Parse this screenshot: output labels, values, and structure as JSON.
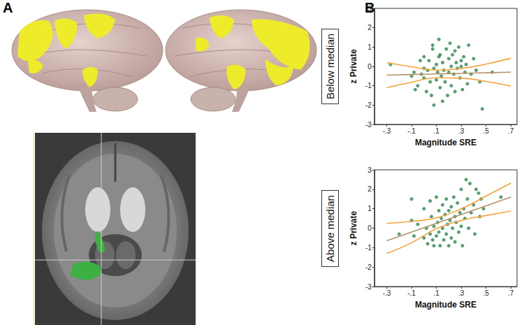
{
  "panel_labels": [
    "A",
    "B"
  ],
  "chart_data": [
    {
      "type": "scatter",
      "title": "Below median",
      "xlabel": "Magnitude SRE",
      "ylabel": "z Private",
      "xlim": [
        -0.4,
        0.75
      ],
      "xticks": [
        {
          "value": -0.3,
          "label": "-.3"
        },
        {
          "value": -0.1,
          "label": "-.1"
        },
        {
          "value": 0.1,
          "label": ".1"
        },
        {
          "value": 0.3,
          "label": ".3"
        },
        {
          "value": 0.5,
          "label": ".5"
        },
        {
          "value": 0.7,
          "label": ".7"
        }
      ],
      "ylim": [
        -3,
        3
      ],
      "yticks": [
        -3,
        -2,
        -1,
        0,
        1,
        2,
        3
      ],
      "grid": false,
      "series": [
        {
          "type": "scatter",
          "color": "#2a8a4a",
          "marker": "circle",
          "x": [
            -0.27,
            -0.1,
            -0.08,
            -0.07,
            -0.05,
            -0.02,
            0.0,
            0.0,
            0.02,
            0.03,
            0.04,
            0.05,
            0.06,
            0.07,
            0.08,
            0.08,
            0.1,
            0.1,
            0.11,
            0.12,
            0.13,
            0.13,
            0.14,
            0.15,
            0.16,
            0.17,
            0.18,
            0.19,
            0.2,
            0.2,
            0.21,
            0.22,
            0.22,
            0.23,
            0.24,
            0.25,
            0.25,
            0.26,
            0.27,
            0.28,
            0.29,
            0.3,
            0.31,
            0.32,
            0.33,
            0.34,
            0.35,
            0.36,
            0.38,
            0.4,
            0.42,
            0.45,
            0.47,
            0.55,
            0.07,
            0.15,
            0.0,
            -0.03,
            0.12,
            0.3
          ],
          "values": [
            0.1,
            -0.5,
            -0.3,
            -1.2,
            -1.0,
            -0.4,
            0.5,
            -0.6,
            -1.3,
            -0.2,
            0.3,
            -0.8,
            -1.5,
            1.1,
            -0.1,
            -2.0,
            0.1,
            -0.7,
            -0.3,
            1.4,
            0.6,
            -1.1,
            -0.5,
            0.2,
            -0.2,
            -0.8,
            0.9,
            -1.5,
            0.4,
            -0.3,
            1.2,
            0.0,
            -1.0,
            0.6,
            -0.4,
            0.8,
            -1.3,
            0.2,
            -0.1,
            1.0,
            -0.6,
            0.3,
            -1.2,
            0.5,
            -0.3,
            0.1,
            -0.9,
            1.1,
            -0.4,
            0.4,
            -0.2,
            -0.8,
            -2.2,
            -0.3,
            0.9,
            -1.8,
            -0.1,
            0.3,
            0.5,
            0.0
          ]
        },
        {
          "type": "line",
          "color": "#b8926a",
          "line_style": "solid",
          "x": [
            -0.3,
            -0.1,
            0.1,
            0.3,
            0.5,
            0.7
          ],
          "values": [
            -0.45,
            -0.42,
            -0.39,
            -0.36,
            -0.33,
            -0.3
          ]
        },
        {
          "type": "line",
          "color": "#f5a33c",
          "line_style": "solid",
          "x": [
            -0.3,
            -0.1,
            0.1,
            0.3,
            0.5,
            0.7
          ],
          "values": [
            0.2,
            -0.02,
            -0.19,
            -0.11,
            0.12,
            0.42
          ]
        },
        {
          "type": "line",
          "color": "#f5a33c",
          "line_style": "solid",
          "x": [
            -0.3,
            -0.1,
            0.1,
            0.3,
            0.5,
            0.7
          ],
          "values": [
            -1.1,
            -0.82,
            -0.59,
            -0.61,
            -0.78,
            -1.02
          ]
        }
      ]
    },
    {
      "type": "scatter",
      "title": "Above median",
      "xlabel": "Magnitude SRE",
      "ylabel": "z Private",
      "xlim": [
        -0.4,
        0.75
      ],
      "xticks": [
        {
          "value": -0.3,
          "label": "-.3"
        },
        {
          "value": -0.1,
          "label": "-.1"
        },
        {
          "value": 0.1,
          "label": ".1"
        },
        {
          "value": 0.3,
          "label": ".3"
        },
        {
          "value": 0.5,
          "label": ".5"
        },
        {
          "value": 0.7,
          "label": ".7"
        }
      ],
      "ylim": [
        -3,
        3
      ],
      "yticks": [
        -3,
        -2,
        -1,
        0,
        1,
        2,
        3
      ],
      "grid": false,
      "series": [
        {
          "type": "scatter",
          "color": "#2a8a4a",
          "marker": "circle",
          "x": [
            -0.1,
            -0.1,
            -0.08,
            -0.05,
            0.0,
            0.0,
            0.02,
            0.03,
            0.05,
            0.05,
            0.06,
            0.08,
            0.08,
            0.1,
            0.1,
            0.11,
            0.12,
            0.12,
            0.13,
            0.14,
            0.15,
            0.15,
            0.16,
            0.17,
            0.18,
            0.18,
            0.19,
            0.2,
            0.2,
            0.21,
            0.22,
            0.22,
            0.23,
            0.24,
            0.25,
            0.25,
            0.26,
            0.27,
            0.28,
            0.29,
            0.3,
            0.3,
            0.31,
            0.32,
            0.33,
            0.34,
            0.35,
            0.36,
            0.37,
            0.38,
            0.4,
            0.41,
            0.42,
            0.44,
            0.45,
            0.46,
            0.48,
            0.62,
            -0.2,
            0.07
          ],
          "values": [
            0.4,
            1.5,
            -0.4,
            0.2,
            -0.5,
            1.0,
            0.0,
            -0.8,
            1.4,
            -0.3,
            0.6,
            0.1,
            -0.9,
            1.6,
            -0.4,
            0.3,
            0.9,
            -0.2,
            -0.9,
            0.5,
            1.2,
            0.0,
            -0.6,
            0.7,
            1.5,
            -0.3,
            0.2,
            -0.9,
            0.9,
            0.4,
            1.1,
            -0.5,
            0.0,
            1.6,
            0.6,
            -0.7,
            0.3,
            1.3,
            -0.2,
            0.8,
            2.0,
            0.1,
            -0.9,
            1.0,
            0.5,
            2.5,
            1.5,
            0.0,
            2.3,
            0.8,
            1.2,
            -0.3,
            2.0,
            1.8,
            0.6,
            1.5,
            1.0,
            1.6,
            -0.3,
            -0.6
          ]
        },
        {
          "type": "line",
          "color": "#b8926a",
          "line_style": "solid",
          "x": [
            -0.3,
            -0.1,
            0.1,
            0.3,
            0.5,
            0.7
          ],
          "values": [
            -0.65,
            -0.2,
            0.25,
            0.7,
            1.15,
            1.6
          ]
        },
        {
          "type": "line",
          "color": "#f5a33c",
          "line_style": "solid",
          "x": [
            -0.3,
            -0.1,
            0.1,
            0.3,
            0.5,
            0.7
          ],
          "values": [
            0.25,
            0.35,
            0.53,
            1.0,
            1.65,
            2.32
          ]
        },
        {
          "type": "line",
          "color": "#f5a33c",
          "line_style": "solid",
          "x": [
            -0.3,
            -0.1,
            0.1,
            0.3,
            0.5,
            0.7
          ],
          "values": [
            -1.3,
            -0.75,
            -0.03,
            0.4,
            0.65,
            0.88
          ]
        }
      ]
    }
  ]
}
